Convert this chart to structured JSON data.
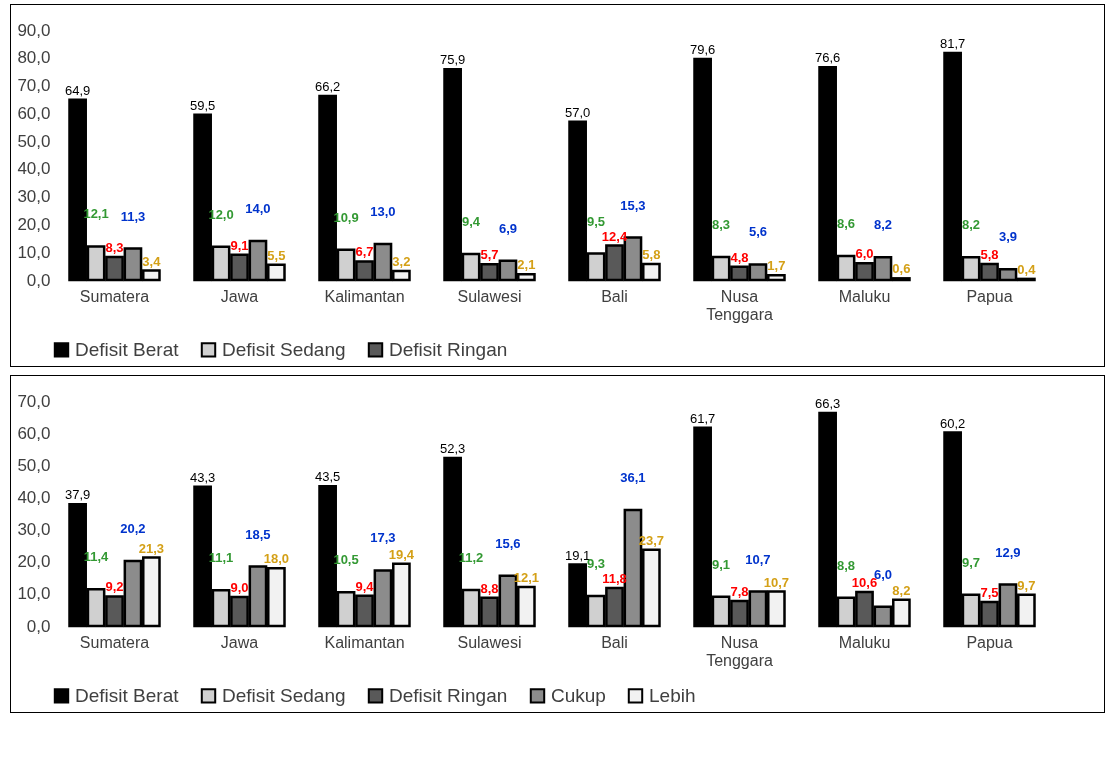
{
  "chart_data": [
    {
      "type": "bar",
      "categories": [
        "Sumatera",
        "Jawa",
        "Kalimantan",
        "Sulawesi",
        "Bali",
        "Nusa Tenggara",
        "Maluku",
        "Papua"
      ],
      "series": [
        {
          "name": "Defisit Berat",
          "color": "#000000",
          "values": [
            64.9,
            59.5,
            66.2,
            75.9,
            57.0,
            79.6,
            76.6,
            81.7
          ],
          "value_labels": [
            "64,9",
            "59,5",
            "66,2",
            "75,9",
            "57,0",
            "79,6",
            "76,6",
            "81,7"
          ]
        },
        {
          "name": "Defisit Sedang",
          "color": "#d0d0d0",
          "values": [
            12.1,
            12.0,
            10.9,
            9.4,
            9.5,
            8.3,
            8.6,
            8.2
          ],
          "value_labels": [
            "12,1",
            "12,0",
            "10,9",
            "9,4",
            "9,5",
            "8,3",
            "8,6",
            "8,2"
          ]
        },
        {
          "name": "Defisit Ringan",
          "color": "#595959",
          "values": [
            8.3,
            9.1,
            6.7,
            5.7,
            12.4,
            4.8,
            6.0,
            5.8
          ],
          "value_labels": [
            "8,3",
            "9,1",
            "6,7",
            "5,7",
            "12,4",
            "4,8",
            "6,0",
            "5,8"
          ]
        },
        {
          "color": "#8c8c8c",
          "values": [
            11.3,
            14.0,
            13.0,
            6.9,
            15.3,
            5.6,
            8.2,
            3.9
          ],
          "value_labels": [
            "11,3",
            "14,0",
            "13,0",
            "6,9",
            "15,3",
            "5,6",
            "8,2",
            "3,9"
          ]
        },
        {
          "color": "#f2f2f2",
          "values": [
            3.4,
            5.5,
            3.2,
            2.1,
            5.8,
            1.7,
            0.6,
            0.4
          ],
          "value_labels": [
            "3,4",
            "5,5",
            "3,2",
            "2,1",
            "5,8",
            "1,7",
            "0,6",
            "0,4"
          ]
        }
      ],
      "ylim": [
        0,
        90
      ],
      "yticks": [
        {
          "value": 0,
          "label": "0,0"
        },
        {
          "value": 10,
          "label": "10,0"
        },
        {
          "value": 20,
          "label": "20,0"
        },
        {
          "value": 30,
          "label": "30,0"
        },
        {
          "value": 40,
          "label": "40,0"
        },
        {
          "value": 50,
          "label": "50,0"
        },
        {
          "value": 60,
          "label": "60,0"
        },
        {
          "value": 70,
          "label": "70,0"
        },
        {
          "value": 80,
          "label": "80,0"
        },
        {
          "value": 90,
          "label": "90,0"
        }
      ],
      "legend": "bottom"
    },
    {
      "type": "bar",
      "categories": [
        "Sumatera",
        "Jawa",
        "Kalimantan",
        "Sulawesi",
        "Bali",
        "Nusa Tenggara",
        "Maluku",
        "Papua"
      ],
      "series": [
        {
          "name": "Defisit Berat",
          "color": "#000000",
          "values": [
            37.9,
            43.3,
            43.5,
            52.3,
            19.1,
            61.7,
            66.3,
            60.2
          ],
          "value_labels": [
            "37,9",
            "43,3",
            "43,5",
            "52,3",
            "19,1",
            "61,7",
            "66,3",
            "60,2"
          ]
        },
        {
          "name": "Defisit Sedang",
          "color": "#d0d0d0",
          "values": [
            11.4,
            11.1,
            10.5,
            11.2,
            9.3,
            9.1,
            8.8,
            9.7
          ],
          "value_labels": [
            "11,4",
            "11,1",
            "10,5",
            "11,2",
            "9,3",
            "9,1",
            "8,8",
            "9,7"
          ]
        },
        {
          "name": "Defisit Ringan",
          "color": "#595959",
          "values": [
            9.2,
            9.0,
            9.4,
            8.8,
            11.8,
            7.8,
            10.6,
            7.5
          ],
          "value_labels": [
            "9,2",
            "9,0",
            "9,4",
            "8,8",
            "11,8",
            "7,8",
            "10,6",
            "7,5"
          ]
        },
        {
          "name": "Cukup",
          "color": "#8c8c8c",
          "values": [
            20.2,
            18.5,
            17.3,
            15.6,
            36.1,
            10.7,
            6.0,
            12.9
          ],
          "value_labels": [
            "20,2",
            "18,5",
            "17,3",
            "15,6",
            "36,1",
            "10,7",
            "6,0",
            "12,9"
          ]
        },
        {
          "name": "Lebih",
          "color": "#f2f2f2",
          "values": [
            21.3,
            18.0,
            19.4,
            12.1,
            23.7,
            10.7,
            8.2,
            9.7
          ],
          "value_labels": [
            "21,3",
            "18,0",
            "19,4",
            "12,1",
            "23,7",
            "10,7",
            "8,2",
            "9,7"
          ]
        }
      ],
      "ylim": [
        0,
        70
      ],
      "yticks": [
        {
          "value": 0,
          "label": "0,0"
        },
        {
          "value": 10,
          "label": "10,0"
        },
        {
          "value": 20,
          "label": "20,0"
        },
        {
          "value": 30,
          "label": "30,0"
        },
        {
          "value": 40,
          "label": "40,0"
        },
        {
          "value": 50,
          "label": "50,0"
        },
        {
          "value": 60,
          "label": "60,0"
        },
        {
          "value": 70,
          "label": "70,0"
        }
      ],
      "legend": "bottom"
    }
  ]
}
